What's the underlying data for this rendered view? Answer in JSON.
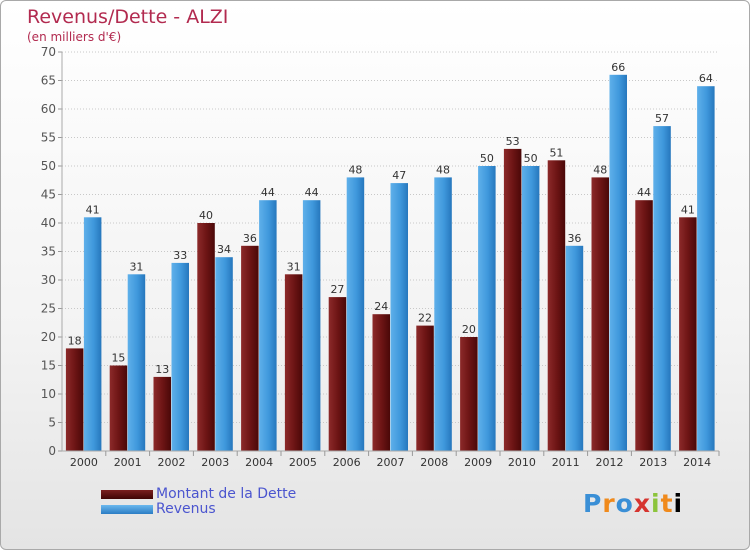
{
  "header": {
    "title": "Revenus/Dette - ALZI",
    "subtitle": "(en milliers d'€)"
  },
  "chart_data": {
    "type": "bar",
    "title": "Revenus/Dette - ALZI",
    "subtitle": "(en milliers d'€)",
    "categories": [
      "2000",
      "2001",
      "2002",
      "2003",
      "2004",
      "2005",
      "2006",
      "2007",
      "2008",
      "2009",
      "2010",
      "2011",
      "2012",
      "2013",
      "2014"
    ],
    "series": [
      {
        "name": "Montant de la Dette",
        "color": "#7a1a1a",
        "values": [
          18,
          15,
          13,
          40,
          36,
          31,
          27,
          24,
          22,
          20,
          53,
          51,
          48,
          44,
          41
        ]
      },
      {
        "name": "Revenus",
        "color": "#3a8fd6",
        "values": [
          41,
          31,
          33,
          34,
          44,
          44,
          48,
          47,
          48,
          50,
          50,
          36,
          66,
          57,
          64
        ]
      }
    ],
    "ylim": [
      0,
      70
    ],
    "yticks": [
      0,
      5,
      10,
      15,
      20,
      25,
      30,
      35,
      40,
      45,
      50,
      55,
      60,
      65,
      70
    ],
    "grid": true,
    "legend_position": "bottom-left"
  },
  "legend": {
    "items": [
      {
        "label": "Montant de la Dette",
        "color": "#5a1010"
      },
      {
        "label": "Revenus",
        "color": "#3a8fd6"
      }
    ]
  },
  "logo": {
    "letters": [
      "P",
      "r",
      "o",
      "x",
      "i",
      "t",
      "i"
    ]
  }
}
